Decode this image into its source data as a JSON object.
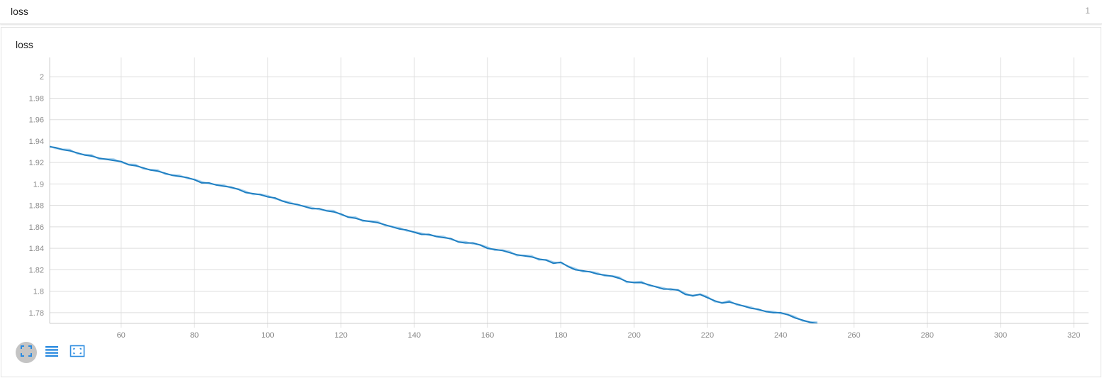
{
  "header": {
    "title": "loss",
    "count": "1"
  },
  "card": {
    "title": "loss"
  },
  "colors": {
    "line": "#1f7fc2",
    "raw_line": "#a9d3ef",
    "grid": "#dddddd",
    "axis": "#cccccc",
    "icon": "#2b8be0"
  },
  "toolbar": {
    "buttons": [
      {
        "icon": "fit-to-data-icon",
        "active": true
      },
      {
        "icon": "toggle-log-scale-icon",
        "active": false
      },
      {
        "icon": "reset-zoom-icon",
        "active": false
      }
    ]
  },
  "chart_data": {
    "type": "line",
    "title": "loss",
    "xlabel": "",
    "ylabel": "",
    "xlim": [
      40.5,
      324
    ],
    "ylim": [
      1.77,
      2.018
    ],
    "x_ticks": [
      60,
      80,
      100,
      120,
      140,
      160,
      180,
      200,
      220,
      240,
      260,
      280,
      300,
      320
    ],
    "y_ticks": [
      1.78,
      1.8,
      1.82,
      1.84,
      1.86,
      1.88,
      1.9,
      1.92,
      1.94,
      1.96,
      1.98,
      2
    ],
    "grid": true,
    "legend": "none",
    "series": [
      {
        "x": [
          40,
          42,
          44,
          46,
          48,
          50,
          52,
          54,
          56,
          58,
          60,
          62,
          64,
          66,
          68,
          70,
          72,
          74,
          76,
          78,
          80,
          82,
          84,
          86,
          88,
          90,
          92,
          94,
          96,
          98,
          100,
          102,
          104,
          106,
          108,
          110,
          112,
          114,
          116,
          118,
          120,
          122,
          124,
          126,
          128,
          130,
          132,
          134,
          136,
          138,
          140,
          142,
          144,
          146,
          148,
          150,
          152,
          154,
          156,
          158,
          160,
          162,
          164,
          166,
          168,
          170,
          172,
          174,
          176,
          178,
          180,
          182,
          184,
          186,
          188,
          190,
          192,
          194,
          196,
          198,
          200,
          202,
          204,
          206,
          208,
          210,
          212,
          214,
          216,
          218,
          220,
          222,
          224,
          226,
          228,
          230,
          232,
          234,
          236,
          238,
          240,
          242,
          244,
          246,
          248,
          250
        ],
        "y": [
          1.935,
          1.934,
          1.932,
          1.931,
          1.929,
          1.927,
          1.926,
          1.924,
          1.923,
          1.922,
          1.921,
          1.918,
          1.917,
          1.915,
          1.913,
          1.912,
          1.91,
          1.908,
          1.907,
          1.906,
          1.904,
          1.901,
          1.901,
          1.899,
          1.898,
          1.897,
          1.895,
          1.892,
          1.891,
          1.89,
          1.888,
          1.887,
          1.884,
          1.882,
          1.881,
          1.879,
          1.877,
          1.877,
          1.875,
          1.874,
          1.872,
          1.869,
          1.868,
          1.866,
          1.865,
          1.864,
          1.862,
          1.86,
          1.858,
          1.857,
          1.855,
          1.853,
          1.853,
          1.851,
          1.85,
          1.849,
          1.846,
          1.845,
          1.845,
          1.843,
          1.84,
          1.839,
          1.838,
          1.836,
          1.834,
          1.833,
          1.832,
          1.83,
          1.829,
          1.826,
          1.827,
          1.823,
          1.82,
          1.819,
          1.818,
          1.816,
          1.815,
          1.814,
          1.812,
          1.809,
          1.808,
          1.808,
          1.806,
          1.804,
          1.802,
          1.802,
          1.801,
          1.797,
          1.796,
          1.797,
          1.794,
          1.791,
          1.789,
          1.79,
          1.788,
          1.786,
          1.784,
          1.783,
          1.781,
          1.78,
          1.78,
          1.778,
          1.775,
          1.773,
          1.771,
          1.77
        ]
      }
    ]
  }
}
